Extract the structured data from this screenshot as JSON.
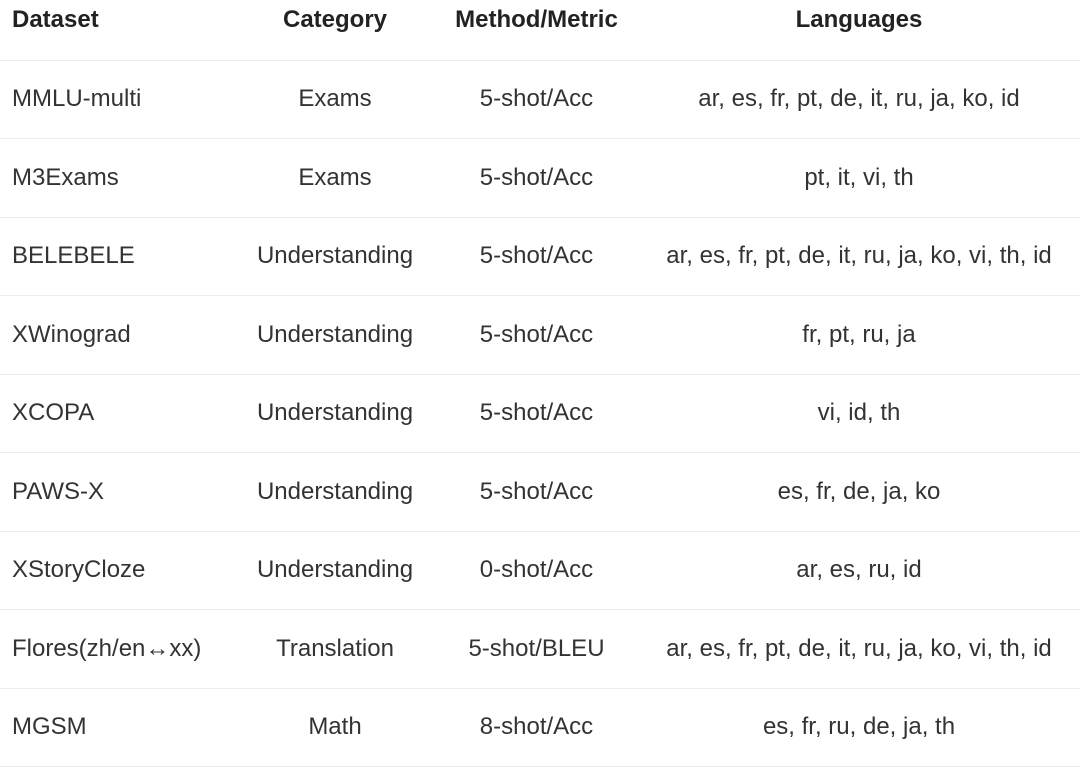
{
  "table": {
    "headers": [
      "Dataset",
      "Category",
      "Method/Metric",
      "Languages"
    ],
    "rows": [
      [
        "MMLU-multi",
        "Exams",
        "5-shot/Acc",
        "ar, es, fr, pt, de, it, ru, ja, ko, id"
      ],
      [
        "M3Exams",
        "Exams",
        "5-shot/Acc",
        "pt, it, vi, th"
      ],
      [
        "BELEBELE",
        "Understanding",
        "5-shot/Acc",
        "ar, es, fr, pt, de, it, ru, ja, ko, vi, th, id"
      ],
      [
        "XWinograd",
        "Understanding",
        "5-shot/Acc",
        "fr, pt, ru, ja"
      ],
      [
        "XCOPA",
        "Understanding",
        "5-shot/Acc",
        "vi, id, th"
      ],
      [
        "PAWS-X",
        "Understanding",
        "5-shot/Acc",
        "es, fr, de, ja, ko"
      ],
      [
        "XStoryCloze",
        "Understanding",
        "0-shot/Acc",
        "ar, es, ru, id"
      ],
      [
        "Flores(zh/en↔xx)",
        "Translation",
        "5-shot/BLEU",
        "ar, es, fr, pt, de, it, ru, ja, ko, vi, th, id"
      ],
      [
        "MGSM",
        "Math",
        "8-shot/Acc",
        "es, fr, ru, de, ja, th"
      ]
    ]
  }
}
